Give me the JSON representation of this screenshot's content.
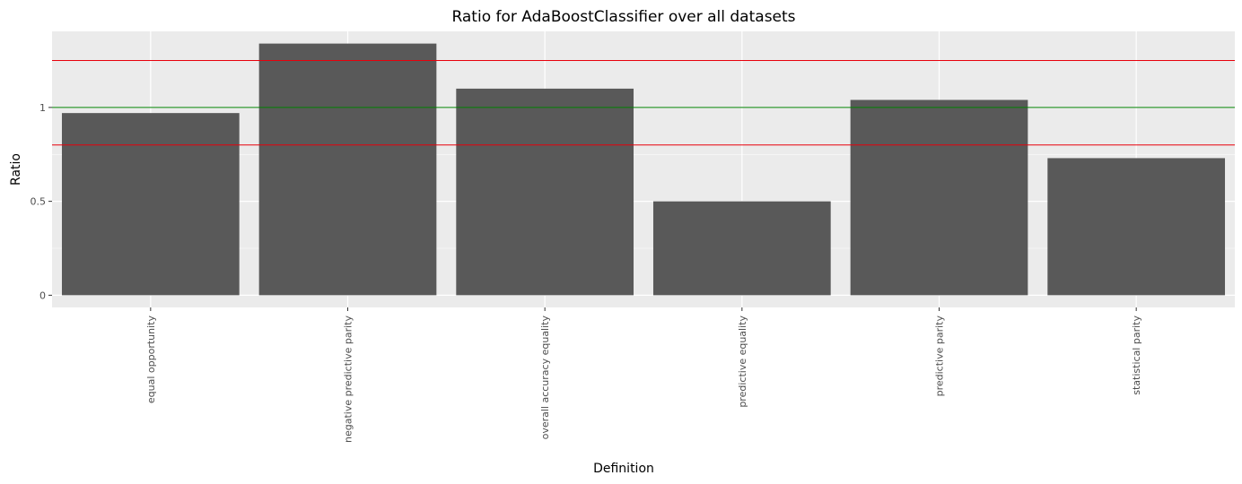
{
  "chart_data": {
    "type": "bar",
    "title": "Ratio for AdaBoostClassifier over all datasets",
    "xlabel": "Definition",
    "ylabel": "Ratio",
    "categories": [
      "equal opportunity",
      "negative predictive parity",
      "overall accuracy equality",
      "predictive equality",
      "predictive parity",
      "statistical parity"
    ],
    "values": [
      0.97,
      1.34,
      1.1,
      0.5,
      1.04,
      0.73
    ],
    "ylim": [
      -0.065,
      1.405
    ],
    "yticks": [
      0,
      0.5,
      1
    ],
    "ytick_labels": [
      "0",
      "0.5",
      "1"
    ],
    "reference_lines": [
      {
        "y": 1.25,
        "color": "#e8000b"
      },
      {
        "y": 1.0,
        "color": "#008000"
      },
      {
        "y": 0.8,
        "color": "#e8000b"
      }
    ],
    "grid": true,
    "colors": {
      "bar": "#595959",
      "panel_background": "#ebebeb",
      "grid": "#ffffff"
    }
  }
}
